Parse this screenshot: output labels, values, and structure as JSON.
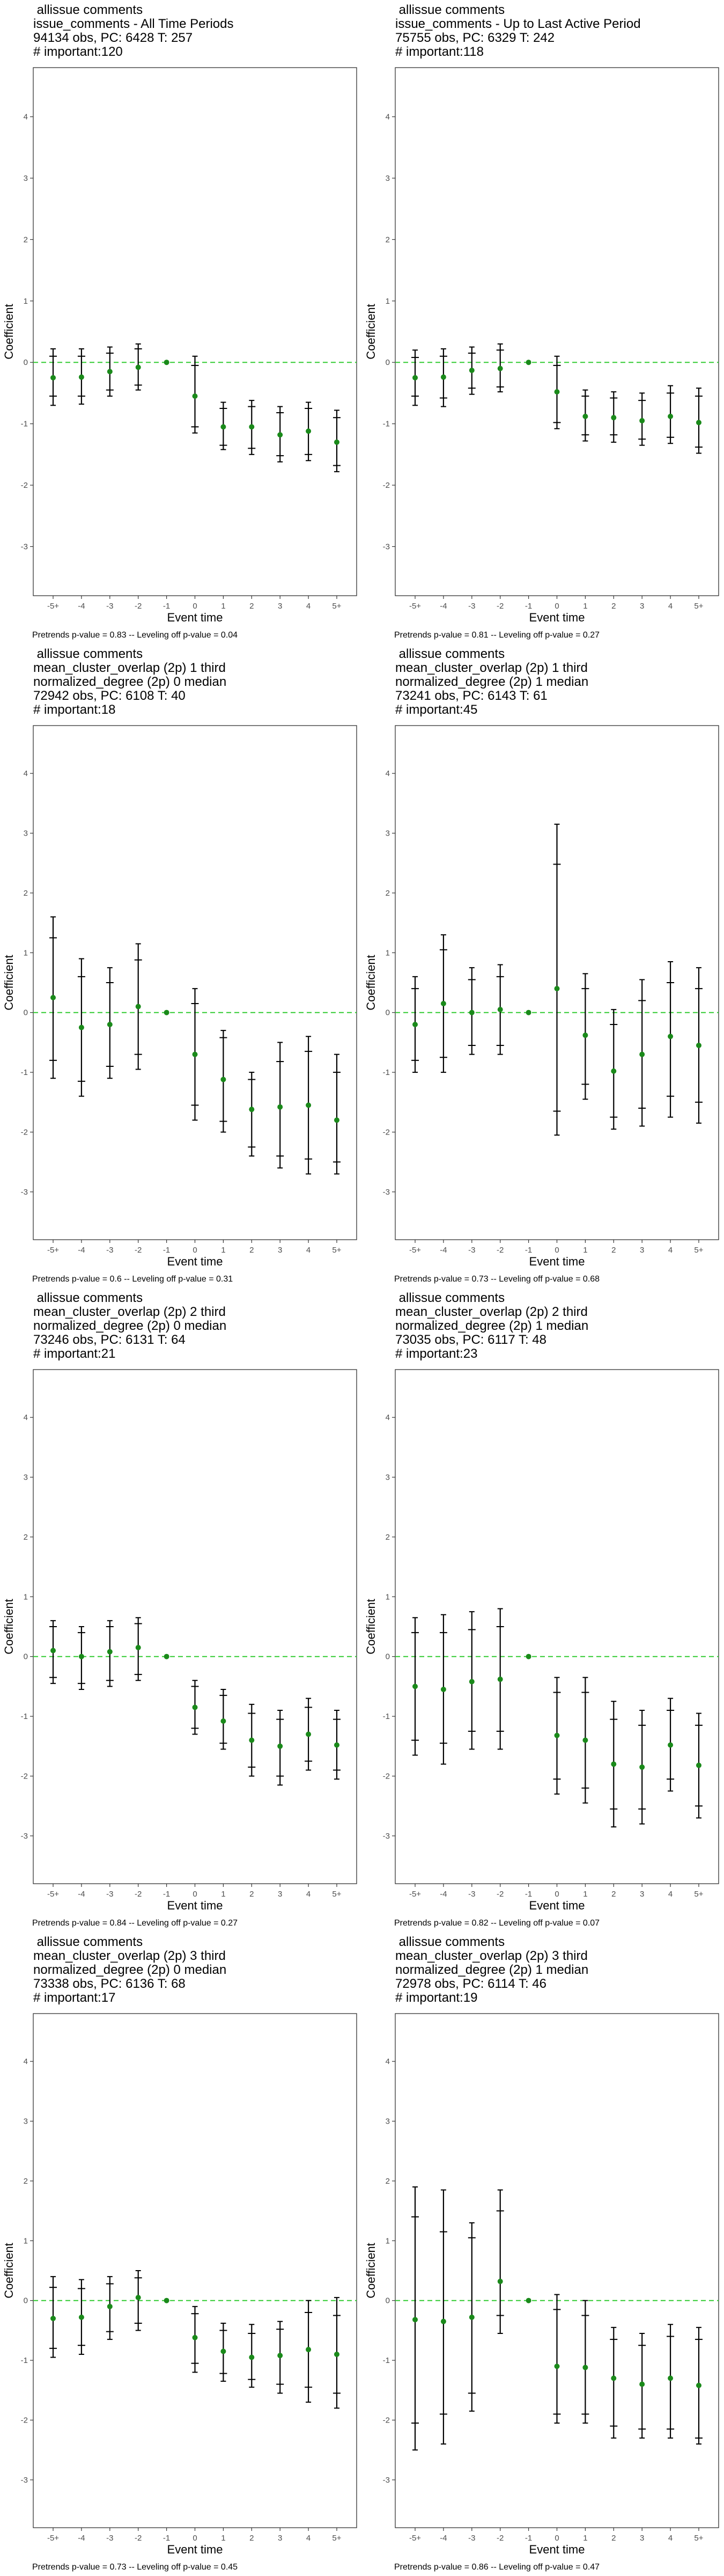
{
  "y_axis_label": "Coefficient",
  "x_axis_label": "Event time",
  "chart_data": [
    {
      "type": "scatter",
      "title_lines": [
        " allissue comments",
        "issue_comments - All Time Periods",
        "94134 obs, PC: 6428 T: 257",
        "# important:120"
      ],
      "xlabel": "Event time",
      "ylabel": "Coefficient",
      "categories": [
        "-5+",
        "-4",
        "-3",
        "-2",
        "-1",
        "0",
        "1",
        "2",
        "3",
        "4",
        "5+"
      ],
      "ylim": [
        -3.8,
        4.8
      ],
      "yticks": [
        -3,
        -2,
        -1,
        0,
        1,
        2,
        3,
        4
      ],
      "series": [
        {
          "estimate": [
            -0.25,
            -0.24,
            -0.15,
            -0.08,
            0,
            -0.55,
            -1.05,
            -1.05,
            -1.18,
            -1.12,
            -1.3
          ],
          "ci_outer_low": [
            -0.7,
            -0.68,
            -0.55,
            -0.45,
            0,
            -1.15,
            -1.42,
            -1.5,
            -1.62,
            -1.6,
            -1.78
          ],
          "ci_outer_high": [
            0.22,
            0.22,
            0.25,
            0.3,
            0,
            0.1,
            -0.65,
            -0.62,
            -0.72,
            -0.65,
            -0.78
          ],
          "ci_inner_low": [
            -0.55,
            -0.55,
            -0.45,
            -0.37,
            0,
            -1.05,
            -1.35,
            -1.4,
            -1.52,
            -1.5,
            -1.68
          ],
          "ci_inner_high": [
            0.1,
            0.1,
            0.15,
            0.22,
            0,
            -0.05,
            -0.75,
            -0.72,
            -0.82,
            -0.75,
            -0.9
          ]
        }
      ],
      "reference_line": 0,
      "caption": "Pretrends p-value = 0.83 -- Leveling off p-value = 0.04"
    },
    {
      "type": "scatter",
      "title_lines": [
        " allissue comments",
        "issue_comments - Up to Last Active Period",
        "75755 obs, PC: 6329 T: 242",
        "# important:118"
      ],
      "xlabel": "Event time",
      "ylabel": "Coefficient",
      "categories": [
        "-5+",
        "-4",
        "-3",
        "-2",
        "-1",
        "0",
        "1",
        "2",
        "3",
        "4",
        "5+"
      ],
      "ylim": [
        -3.8,
        4.8
      ],
      "yticks": [
        -3,
        -2,
        -1,
        0,
        1,
        2,
        3,
        4
      ],
      "series": [
        {
          "estimate": [
            -0.25,
            -0.24,
            -0.13,
            -0.1,
            0,
            -0.48,
            -0.88,
            -0.9,
            -0.95,
            -0.88,
            -0.98
          ],
          "ci_outer_low": [
            -0.7,
            -0.72,
            -0.52,
            -0.48,
            0,
            -1.08,
            -1.28,
            -1.3,
            -1.35,
            -1.32,
            -1.48
          ],
          "ci_outer_high": [
            0.2,
            0.22,
            0.25,
            0.3,
            0,
            0.1,
            -0.45,
            -0.48,
            -0.5,
            -0.38,
            -0.42
          ],
          "ci_inner_low": [
            -0.55,
            -0.58,
            -0.42,
            -0.4,
            0,
            -0.98,
            -1.18,
            -1.18,
            -1.25,
            -1.22,
            -1.38
          ],
          "ci_inner_high": [
            0.08,
            0.1,
            0.15,
            0.2,
            0,
            -0.05,
            -0.55,
            -0.58,
            -0.62,
            -0.5,
            -0.55
          ]
        }
      ],
      "reference_line": 0,
      "caption": "Pretrends p-value = 0.81 -- Leveling off p-value = 0.27"
    },
    {
      "type": "scatter",
      "title_lines": [
        " allissue comments",
        "mean_cluster_overlap (2p) 1 third",
        "normalized_degree (2p) 0 median",
        "72942 obs, PC: 6108 T: 40",
        "# important:18"
      ],
      "xlabel": "Event time",
      "ylabel": "Coefficient",
      "categories": [
        "-5+",
        "-4",
        "-3",
        "-2",
        "-1",
        "0",
        "1",
        "2",
        "3",
        "4",
        "5+"
      ],
      "ylim": [
        -3.8,
        4.8
      ],
      "yticks": [
        -3,
        -2,
        -1,
        0,
        1,
        2,
        3,
        4
      ],
      "series": [
        {
          "estimate": [
            0.25,
            -0.25,
            -0.2,
            0.1,
            0,
            -0.7,
            -1.12,
            -1.62,
            -1.58,
            -1.55,
            -1.8
          ],
          "ci_outer_low": [
            -1.1,
            -1.4,
            -1.1,
            -0.95,
            0,
            -1.8,
            -2.0,
            -2.4,
            -2.6,
            -2.7,
            -2.7
          ],
          "ci_outer_high": [
            1.6,
            0.9,
            0.75,
            1.15,
            0,
            0.4,
            -0.3,
            -1.0,
            -0.5,
            -0.4,
            -0.7
          ],
          "ci_inner_low": [
            -0.8,
            -1.15,
            -0.9,
            -0.7,
            0,
            -1.55,
            -1.82,
            -2.25,
            -2.4,
            -2.45,
            -2.5
          ],
          "ci_inner_high": [
            1.25,
            0.6,
            0.5,
            0.88,
            0,
            0.15,
            -0.42,
            -1.12,
            -0.82,
            -0.65,
            -1.0
          ]
        }
      ],
      "reference_line": 0,
      "caption": "Pretrends p-value = 0.6 -- Leveling off p-value = 0.31"
    },
    {
      "type": "scatter",
      "title_lines": [
        " allissue comments",
        "mean_cluster_overlap (2p) 1 third",
        "normalized_degree (2p) 1 median",
        "73241 obs, PC: 6143 T: 61",
        "# important:45"
      ],
      "xlabel": "Event time",
      "ylabel": "Coefficient",
      "categories": [
        "-5+",
        "-4",
        "-3",
        "-2",
        "-1",
        "0",
        "1",
        "2",
        "3",
        "4",
        "5+"
      ],
      "ylim": [
        -3.8,
        4.8
      ],
      "yticks": [
        -3,
        -2,
        -1,
        0,
        1,
        2,
        3,
        4
      ],
      "series": [
        {
          "estimate": [
            -0.2,
            0.15,
            0.0,
            0.05,
            0,
            0.4,
            -0.38,
            -0.98,
            -0.7,
            -0.4,
            -0.55
          ],
          "ci_outer_low": [
            -1.0,
            -1.0,
            -0.7,
            -0.7,
            0,
            -2.05,
            -1.45,
            -1.95,
            -1.9,
            -1.75,
            -1.85
          ],
          "ci_outer_high": [
            0.6,
            1.3,
            0.75,
            0.8,
            0,
            3.15,
            0.65,
            0.05,
            0.55,
            0.85,
            0.75
          ],
          "ci_inner_low": [
            -0.8,
            -0.75,
            -0.55,
            -0.55,
            0,
            -1.65,
            -1.2,
            -1.75,
            -1.6,
            -1.4,
            -1.5
          ],
          "ci_inner_high": [
            0.4,
            1.05,
            0.55,
            0.6,
            0,
            2.48,
            0.4,
            -0.2,
            0.2,
            0.5,
            0.4
          ]
        }
      ],
      "reference_line": 0,
      "caption": "Pretrends p-value = 0.73 -- Leveling off p-value = 0.68"
    },
    {
      "type": "scatter",
      "title_lines": [
        " allissue comments",
        "mean_cluster_overlap (2p) 2 third",
        "normalized_degree (2p) 0 median",
        "73246 obs, PC: 6131 T: 64",
        "# important:21"
      ],
      "xlabel": "Event time",
      "ylabel": "Coefficient",
      "categories": [
        "-5+",
        "-4",
        "-3",
        "-2",
        "-1",
        "0",
        "1",
        "2",
        "3",
        "4",
        "5+"
      ],
      "ylim": [
        -3.8,
        4.8
      ],
      "yticks": [
        -3,
        -2,
        -1,
        0,
        1,
        2,
        3,
        4
      ],
      "series": [
        {
          "estimate": [
            0.1,
            0.0,
            0.08,
            0.15,
            0,
            -0.85,
            -1.08,
            -1.4,
            -1.5,
            -1.3,
            -1.48
          ],
          "ci_outer_low": [
            -0.45,
            -0.55,
            -0.5,
            -0.4,
            0,
            -1.3,
            -1.55,
            -2.0,
            -2.15,
            -1.9,
            -2.05
          ],
          "ci_outer_high": [
            0.6,
            0.5,
            0.6,
            0.65,
            0,
            -0.4,
            -0.55,
            -0.8,
            -0.9,
            -0.7,
            -0.9
          ],
          "ci_inner_low": [
            -0.35,
            -0.45,
            -0.4,
            -0.3,
            0,
            -1.2,
            -1.45,
            -1.85,
            -2.0,
            -1.75,
            -1.9
          ],
          "ci_inner_high": [
            0.5,
            0.4,
            0.5,
            0.55,
            0,
            -0.5,
            -0.65,
            -0.95,
            -1.05,
            -0.85,
            -1.05
          ]
        }
      ],
      "reference_line": 0,
      "caption": "Pretrends p-value = 0.84 -- Leveling off p-value = 0.27"
    },
    {
      "type": "scatter",
      "title_lines": [
        " allissue comments",
        "mean_cluster_overlap (2p) 2 third",
        "normalized_degree (2p) 1 median",
        "73035 obs, PC: 6117 T: 48",
        "# important:23"
      ],
      "xlabel": "Event time",
      "ylabel": "Coefficient",
      "categories": [
        "-5+",
        "-4",
        "-3",
        "-2",
        "-1",
        "0",
        "1",
        "2",
        "3",
        "4",
        "5+"
      ],
      "ylim": [
        -3.8,
        4.8
      ],
      "yticks": [
        -3,
        -2,
        -1,
        0,
        1,
        2,
        3,
        4
      ],
      "series": [
        {
          "estimate": [
            -0.5,
            -0.55,
            -0.42,
            -0.38,
            0,
            -1.32,
            -1.4,
            -1.8,
            -1.85,
            -1.48,
            -1.82
          ],
          "ci_outer_low": [
            -1.65,
            -1.8,
            -1.55,
            -1.55,
            0,
            -2.3,
            -2.45,
            -2.85,
            -2.8,
            -2.25,
            -2.7
          ],
          "ci_outer_high": [
            0.65,
            0.7,
            0.75,
            0.8,
            0,
            -0.35,
            -0.35,
            -0.75,
            -0.9,
            -0.7,
            -0.95
          ],
          "ci_inner_low": [
            -1.4,
            -1.45,
            -1.25,
            -1.25,
            0,
            -2.05,
            -2.2,
            -2.55,
            -2.55,
            -2.05,
            -2.5
          ],
          "ci_inner_high": [
            0.4,
            0.4,
            0.45,
            0.5,
            0,
            -0.6,
            -0.6,
            -1.05,
            -1.15,
            -0.9,
            -1.15
          ]
        }
      ],
      "reference_line": 0,
      "caption": "Pretrends p-value = 0.82 -- Leveling off p-value = 0.07"
    },
    {
      "type": "scatter",
      "title_lines": [
        " allissue comments",
        "mean_cluster_overlap (2p) 3 third",
        "normalized_degree (2p) 0 median",
        "73338 obs, PC: 6136 T: 68",
        "# important:17"
      ],
      "xlabel": "Event time",
      "ylabel": "Coefficient",
      "categories": [
        "-5+",
        "-4",
        "-3",
        "-2",
        "-1",
        "0",
        "1",
        "2",
        "3",
        "4",
        "5+"
      ],
      "ylim": [
        -3.8,
        4.8
      ],
      "yticks": [
        -3,
        -2,
        -1,
        0,
        1,
        2,
        3,
        4
      ],
      "series": [
        {
          "estimate": [
            -0.3,
            -0.28,
            -0.1,
            0.05,
            0,
            -0.62,
            -0.85,
            -0.95,
            -0.92,
            -0.82,
            -0.9
          ],
          "ci_outer_low": [
            -0.95,
            -0.9,
            -0.65,
            -0.5,
            0,
            -1.2,
            -1.35,
            -1.45,
            -1.55,
            -1.7,
            -1.8
          ],
          "ci_outer_high": [
            0.4,
            0.35,
            0.4,
            0.5,
            0,
            -0.1,
            -0.38,
            -0.4,
            -0.35,
            0.0,
            0.05
          ],
          "ci_inner_low": [
            -0.8,
            -0.75,
            -0.52,
            -0.38,
            0,
            -1.05,
            -1.22,
            -1.32,
            -1.4,
            -1.45,
            -1.55
          ],
          "ci_inner_high": [
            0.22,
            0.2,
            0.28,
            0.38,
            0,
            -0.22,
            -0.5,
            -0.55,
            -0.48,
            -0.2,
            -0.25
          ]
        }
      ],
      "reference_line": 0,
      "caption": "Pretrends p-value = 0.73 -- Leveling off p-value = 0.45"
    },
    {
      "type": "scatter",
      "title_lines": [
        " allissue comments",
        "mean_cluster_overlap (2p) 3 third",
        "normalized_degree (2p) 1 median",
        "72978 obs, PC: 6114 T: 46",
        "# important:19"
      ],
      "xlabel": "Event time",
      "ylabel": "Coefficient",
      "categories": [
        "-5+",
        "-4",
        "-3",
        "-2",
        "-1",
        "0",
        "1",
        "2",
        "3",
        "4",
        "5+"
      ],
      "ylim": [
        -3.8,
        4.8
      ],
      "yticks": [
        -3,
        -2,
        -1,
        0,
        1,
        2,
        3,
        4
      ],
      "series": [
        {
          "estimate": [
            -0.32,
            -0.35,
            -0.28,
            0.32,
            0,
            -1.1,
            -1.12,
            -1.3,
            -1.4,
            -1.3,
            -1.42
          ],
          "ci_outer_low": [
            -2.5,
            -2.4,
            -1.85,
            -0.55,
            0,
            -2.05,
            -2.05,
            -2.3,
            -2.3,
            -2.3,
            -2.4
          ],
          "ci_outer_high": [
            1.9,
            1.85,
            1.3,
            1.85,
            0,
            0.1,
            0.0,
            -0.45,
            -0.55,
            -0.4,
            -0.45
          ],
          "ci_inner_low": [
            -2.05,
            -1.9,
            -1.55,
            -0.25,
            0,
            -1.9,
            -1.9,
            -2.1,
            -2.15,
            -2.15,
            -2.3
          ],
          "ci_inner_high": [
            1.4,
            1.15,
            1.05,
            1.5,
            0,
            -0.15,
            -0.25,
            -0.65,
            -0.75,
            -0.6,
            -0.65
          ]
        }
      ],
      "reference_line": 0,
      "caption": "Pretrends p-value = 0.86 -- Leveling off p-value = 0.47"
    }
  ],
  "colors": {
    "point": "#1a8a1a",
    "reference_line": "#33cc33",
    "error_bar": "#000000",
    "axis_text": "#4d4d4d",
    "panel_border": "#333333"
  }
}
